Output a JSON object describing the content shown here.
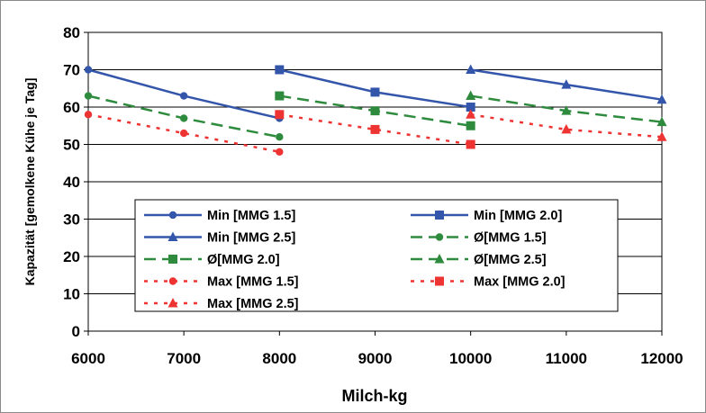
{
  "chart_data": {
    "type": "line",
    "xlabel": "Milch-kg",
    "ylabel": "Kapazität [gemolkene Kühe je Tag]",
    "xlim": [
      6000,
      12000
    ],
    "ylim": [
      0,
      80
    ],
    "xticks": [
      "6000",
      "7000",
      "8000",
      "9000",
      "10000",
      "11000",
      "12000"
    ],
    "yticks": [
      "0",
      "10",
      "20",
      "30",
      "40",
      "50",
      "60",
      "70",
      "80"
    ],
    "grid": "horizontal",
    "legend_position": "inside-lower-center",
    "series": [
      {
        "name": "Min [MMG 1.5]",
        "color": "#3355aa",
        "dash": "solid",
        "marker": "circle",
        "points": [
          [
            6000,
            70
          ],
          [
            7000,
            63
          ],
          [
            8000,
            57
          ]
        ]
      },
      {
        "name": "Min [MMG 2.0]",
        "color": "#3355aa",
        "dash": "solid",
        "marker": "square",
        "points": [
          [
            8000,
            70
          ],
          [
            9000,
            64
          ],
          [
            10000,
            60
          ]
        ]
      },
      {
        "name": "Min [MMG 2.5]",
        "color": "#3355aa",
        "dash": "solid",
        "marker": "triangle",
        "points": [
          [
            10000,
            70
          ],
          [
            11000,
            66
          ],
          [
            12000,
            62
          ]
        ]
      },
      {
        "name": "Ø[MMG 1.5]",
        "color": "#2e8b3e",
        "dash": "dashed",
        "marker": "circle",
        "points": [
          [
            6000,
            63
          ],
          [
            7000,
            57
          ],
          [
            8000,
            52
          ]
        ]
      },
      {
        "name": "Ø[MMG 2.0]",
        "color": "#2e8b3e",
        "dash": "dashed",
        "marker": "square",
        "points": [
          [
            8000,
            63
          ],
          [
            9000,
            59
          ],
          [
            10000,
            55
          ]
        ]
      },
      {
        "name": "Ø[MMG 2.5]",
        "color": "#2e8b3e",
        "dash": "dashed",
        "marker": "triangle",
        "points": [
          [
            10000,
            63
          ],
          [
            11000,
            59
          ],
          [
            12000,
            56
          ]
        ]
      },
      {
        "name": "Max [MMG 1.5]",
        "color": "#ee3333",
        "dash": "dotted",
        "marker": "circle",
        "points": [
          [
            6000,
            58
          ],
          [
            7000,
            53
          ],
          [
            8000,
            48
          ]
        ]
      },
      {
        "name": "Max [MMG 2.0]",
        "color": "#ee3333",
        "dash": "dotted",
        "marker": "square",
        "points": [
          [
            8000,
            58
          ],
          [
            9000,
            54
          ],
          [
            10000,
            50
          ]
        ]
      },
      {
        "name": "Max [MMG 2.5]",
        "color": "#ee3333",
        "dash": "dotted",
        "marker": "triangle",
        "points": [
          [
            10000,
            58
          ],
          [
            11000,
            54
          ],
          [
            12000,
            52
          ]
        ]
      }
    ]
  }
}
